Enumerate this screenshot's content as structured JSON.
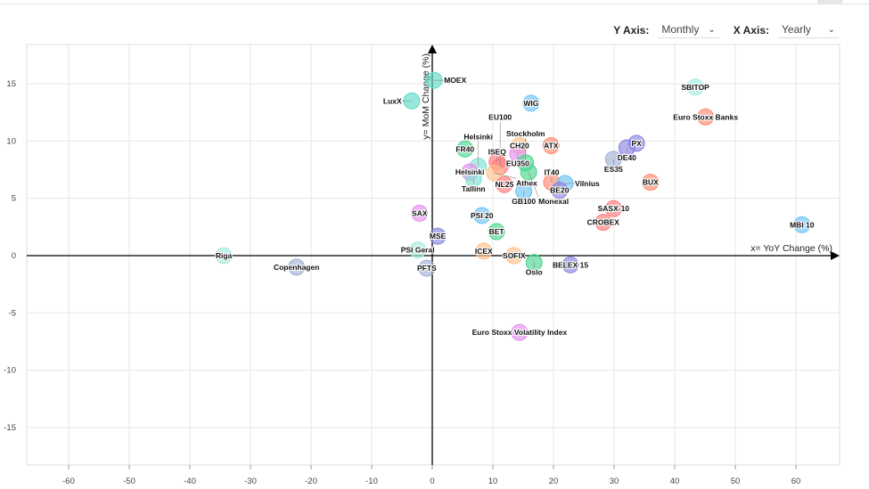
{
  "controls": {
    "y_axis_label": "Y Axis:",
    "y_axis_value": "Monthly",
    "x_axis_label": "X Axis:",
    "x_axis_value": "Yearly"
  },
  "chart_data": {
    "type": "scatter",
    "xlabel": "x= YoY Change (%)",
    "ylabel": "y= MoM Change (%)",
    "xlim": [
      -67,
      67
    ],
    "ylim": [
      -18.4,
      18.4
    ],
    "xticks": [
      -60,
      -50,
      -40,
      -30,
      -20,
      -10,
      0,
      10,
      20,
      30,
      40,
      50,
      60
    ],
    "yticks": [
      15,
      10,
      5,
      0,
      -5,
      -10,
      -15
    ],
    "grid": true,
    "points": [
      {
        "label": "MOEX",
        "x": 0.3,
        "y": 15.3,
        "color": "#5fdcc8"
      },
      {
        "label": "LuxX",
        "x": -3.4,
        "y": 13.5,
        "color": "#5fdcc8"
      },
      {
        "label": "WIG",
        "x": 16.3,
        "y": 13.3,
        "color": "#6cc3f5"
      },
      {
        "label": "SBITOP",
        "x": 43.4,
        "y": 14.7,
        "color": "#a5ece2"
      },
      {
        "label": "Euro Stoxx Banks",
        "x": 45.1,
        "y": 12.1,
        "color": "#ff8a6e"
      },
      {
        "label": "FR40",
        "x": 5.4,
        "y": 9.3,
        "color": "#49d68f"
      },
      {
        "label": "CH20",
        "x": 14.4,
        "y": 9.6,
        "color": "#ffc08a"
      },
      {
        "label": "EU350",
        "x": 14.1,
        "y": 8.9,
        "color": "#e58df0"
      },
      {
        "label": "ATX",
        "x": 19.6,
        "y": 9.6,
        "color": "#ff8a6e"
      },
      {
        "label": "PX",
        "x": 33.7,
        "y": 9.8,
        "color": "#8a86e0"
      },
      {
        "label": "DE40",
        "x": 32.1,
        "y": 9.4,
        "color": "#8a86e0"
      },
      {
        "label": "ES35",
        "x": 29.9,
        "y": 8.4,
        "color": "#9fb0d6"
      },
      {
        "label": "ISEQ",
        "x": 10.7,
        "y": 8.2,
        "color": "#ff7b7b"
      },
      {
        "label": "Stockholm",
        "x": 15.4,
        "y": 8.1,
        "color": "#49d68f"
      },
      {
        "label": "Helsinki",
        "x": 7.6,
        "y": 7.8,
        "color": "#7ee3d3"
      },
      {
        "label": "Helsinki",
        "x": 6.2,
        "y": 7.3,
        "color": "#e58df0"
      },
      {
        "label": "EU100",
        "x": 11.2,
        "y": 7.8,
        "color": "#ff7b7b"
      },
      {
        "label": "Athex",
        "x": 10.3,
        "y": 7.2,
        "color": "#ffc08a"
      },
      {
        "label": "Monexal",
        "x": 15.9,
        "y": 7.3,
        "color": "#49d68f"
      },
      {
        "label": "Tallinn",
        "x": 6.8,
        "y": 6.7,
        "color": "#7ee3d3"
      },
      {
        "label": "NL25",
        "x": 11.9,
        "y": 6.2,
        "color": "#ff7b7b"
      },
      {
        "label": "IT40",
        "x": 19.7,
        "y": 6.4,
        "color": "#ff8a6e"
      },
      {
        "label": "Vilnius",
        "x": 21.9,
        "y": 6.3,
        "color": "#6cc3f5"
      },
      {
        "label": "BE20",
        "x": 21.0,
        "y": 5.7,
        "color": "#8a86e0"
      },
      {
        "label": "GB100",
        "x": 15.1,
        "y": 5.6,
        "color": "#6cc3f5"
      },
      {
        "label": "BUX",
        "x": 36.0,
        "y": 6.4,
        "color": "#ff8a6e"
      },
      {
        "label": "SASX-10",
        "x": 29.9,
        "y": 4.1,
        "color": "#ff7b7b"
      },
      {
        "label": "CROBEX",
        "x": 28.2,
        "y": 2.9,
        "color": "#ff7b7b"
      },
      {
        "label": "MBI 10",
        "x": 61.0,
        "y": 2.7,
        "color": "#6cc3f5"
      },
      {
        "label": "SAX",
        "x": -2.1,
        "y": 3.7,
        "color": "#e58df0"
      },
      {
        "label": "PSI 20",
        "x": 8.2,
        "y": 3.5,
        "color": "#6cc3f5"
      },
      {
        "label": "BET",
        "x": 10.6,
        "y": 2.1,
        "color": "#49d68f"
      },
      {
        "label": "MSE",
        "x": 0.9,
        "y": 1.7,
        "color": "#8a86e0"
      },
      {
        "label": "PSI Geral",
        "x": -2.4,
        "y": 0.5,
        "color": "#a5ece2"
      },
      {
        "label": "ICEX",
        "x": 8.5,
        "y": 0.4,
        "color": "#ffc08a"
      },
      {
        "label": "SOFIX",
        "x": 13.5,
        "y": 0.0,
        "color": "#ffc08a"
      },
      {
        "label": "Oslo",
        "x": 16.8,
        "y": -0.6,
        "color": "#49d68f"
      },
      {
        "label": "BELEX 15",
        "x": 22.8,
        "y": -0.8,
        "color": "#8a86e0"
      },
      {
        "label": "PFTS",
        "x": -0.9,
        "y": -1.1,
        "color": "#9fb0d6"
      },
      {
        "label": "Riga",
        "x": -34.4,
        "y": 0.0,
        "color": "#a5ece2"
      },
      {
        "label": "Copenhagen",
        "x": -22.4,
        "y": -1.0,
        "color": "#9fb0d6"
      },
      {
        "label": "Euro Stoxx Volatility Index",
        "x": 14.4,
        "y": -6.7,
        "color": "#e58df0"
      }
    ]
  }
}
